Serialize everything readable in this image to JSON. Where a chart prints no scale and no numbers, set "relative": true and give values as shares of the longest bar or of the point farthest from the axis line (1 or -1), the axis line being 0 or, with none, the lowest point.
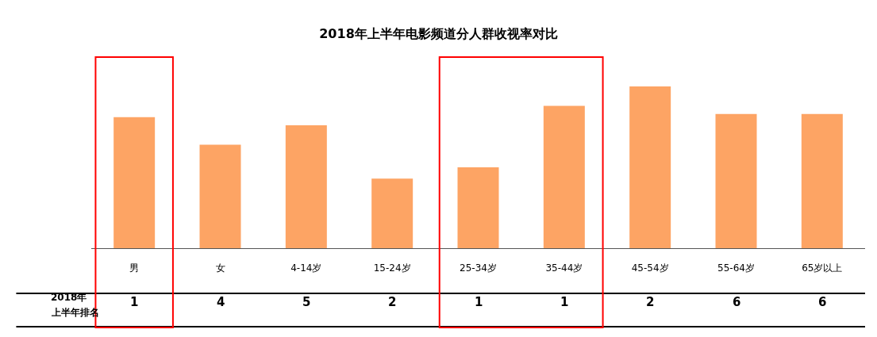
{
  "chart_data": {
    "type": "bar",
    "title": "2018年上半年电影频道分人群收视率对比",
    "categories": [
      "男",
      "女",
      "4-14岁",
      "15-24岁",
      "25-34岁",
      "35-44岁",
      "45-54岁",
      "55-64岁",
      "65岁以上"
    ],
    "values": [
      0.81,
      0.64,
      0.76,
      0.43,
      0.5,
      0.88,
      1,
      0.83,
      0.83
    ],
    "color": "#fda464",
    "relative": true,
    "annotations": [
      "2018年",
      "上半年排名",
      "1",
      "4",
      "5",
      "2",
      "1",
      "1",
      "2",
      "6",
      "6"
    ]
  }
}
